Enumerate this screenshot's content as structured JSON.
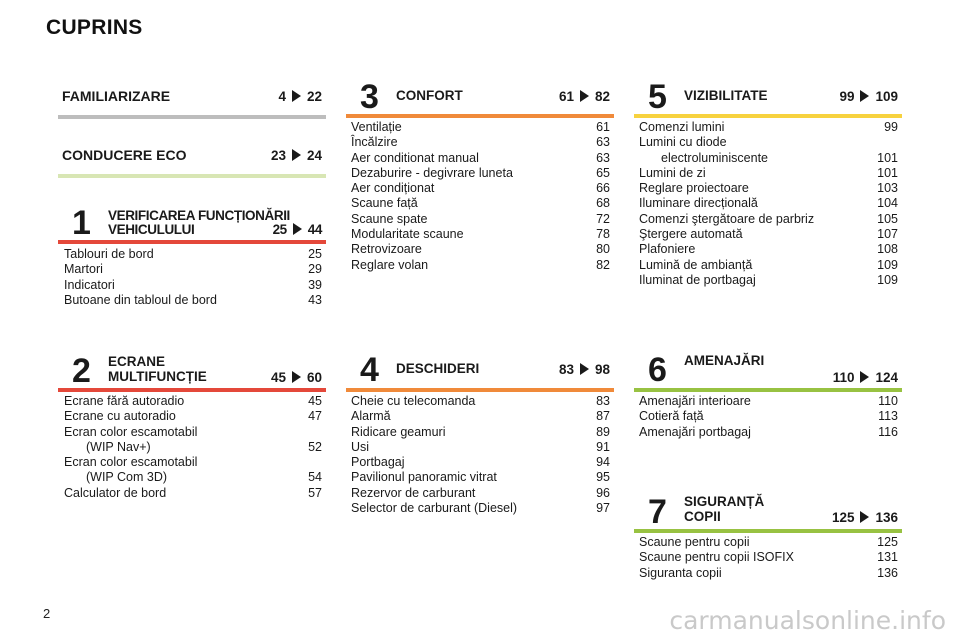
{
  "page": {
    "title": "CUPRINS",
    "number": "2",
    "watermark": "carmanualsonline.info"
  },
  "colors": {
    "gray": "#bdbdbd",
    "lightgreen": "#d8e6b4",
    "red": "#e4483a",
    "orange": "#f08a3a",
    "yellow": "#f7d23e",
    "green": "#98c242"
  },
  "sections": {
    "familiarizare": {
      "title": "FAMILIARIZARE",
      "from": "4",
      "to": "22"
    },
    "conducere_eco": {
      "title": "CONDUCERE ECO",
      "from": "23",
      "to": "24"
    },
    "s1": {
      "num": "1",
      "title_line1": "VERIFICAREA FUNCȚIONĂRII",
      "title_line2": "VEHICULULUI",
      "from": "25",
      "to": "44",
      "items": [
        {
          "label": "Tablouri de bord",
          "page": "25"
        },
        {
          "label": "Martori",
          "page": "29"
        },
        {
          "label": "Indicatori",
          "page": "39"
        },
        {
          "label": "Butoane din tabloul de bord",
          "page": "43"
        }
      ]
    },
    "s2": {
      "num": "2",
      "title_line1": "ECRANE",
      "title_line2": "MULTIFUNCȚIE",
      "from": "45",
      "to": "60",
      "items": [
        {
          "label": "Ecrane fără autoradio",
          "page": "45"
        },
        {
          "label": "Ecrane cu autoradio",
          "page": "47"
        },
        {
          "label": "Ecran color escamotabil",
          "page": ""
        },
        {
          "label": "(WIP Nav+)",
          "page": "52"
        },
        {
          "label": "Ecran color escamotabil",
          "page": ""
        },
        {
          "label": "(WIP Com 3D)",
          "page": "54"
        },
        {
          "label": "Calculator de bord",
          "page": "57"
        }
      ]
    },
    "s3": {
      "num": "3",
      "title": "CONFORT",
      "from": "61",
      "to": "82",
      "items": [
        {
          "label": "Ventilație",
          "page": "61"
        },
        {
          "label": "Încălzire",
          "page": "63"
        },
        {
          "label": "Aer conditionat manual",
          "page": "63"
        },
        {
          "label": "Dezaburire - degivrare luneta",
          "page": "65"
        },
        {
          "label": "Aer condiționat",
          "page": "66"
        },
        {
          "label": "Scaune față",
          "page": "68"
        },
        {
          "label": "Scaune spate",
          "page": "72"
        },
        {
          "label": "Modularitate scaune",
          "page": "78"
        },
        {
          "label": "Retrovizoare",
          "page": "80"
        },
        {
          "label": "Reglare volan",
          "page": "82"
        }
      ]
    },
    "s4": {
      "num": "4",
      "title": "DESCHIDERI",
      "from": "83",
      "to": "98",
      "items": [
        {
          "label": "Cheie cu telecomanda",
          "page": "83"
        },
        {
          "label": "Alarmă",
          "page": "87"
        },
        {
          "label": "Ridicare geamuri",
          "page": "89"
        },
        {
          "label": "Usi",
          "page": "91"
        },
        {
          "label": "Portbagaj",
          "page": "94"
        },
        {
          "label": "Pavilionul panoramic vitrat",
          "page": "95"
        },
        {
          "label": "Rezervor de carburant",
          "page": "96"
        },
        {
          "label": "Selector de carburant (Diesel)",
          "page": "97"
        }
      ]
    },
    "s5": {
      "num": "5",
      "title": "VIZIBILITATE",
      "from": "99",
      "to": "109",
      "items": [
        {
          "label": "Comenzi lumini",
          "page": "99"
        },
        {
          "label": "Lumini cu diode",
          "page": ""
        },
        {
          "label": "electroluminiscente",
          "page": "101"
        },
        {
          "label": "Lumini de zi",
          "page": "101"
        },
        {
          "label": "Reglare proiectoare",
          "page": "103"
        },
        {
          "label": "Iluminare direcțională",
          "page": "104"
        },
        {
          "label": "Comenzi ştergătoare de parbriz",
          "page": "105"
        },
        {
          "label": "Ştergere automată",
          "page": "107"
        },
        {
          "label": "Plafoniere",
          "page": "108"
        },
        {
          "label": "Lumină de ambianță",
          "page": "109"
        },
        {
          "label": "Iluminat de portbagaj",
          "page": "109"
        }
      ]
    },
    "s6": {
      "num": "6",
      "title": "AMENAJĂRI",
      "from": "110",
      "to": "124",
      "items": [
        {
          "label": "Amenajări interioare",
          "page": "110"
        },
        {
          "label": "Cotieră față",
          "page": "113"
        },
        {
          "label": "Amenajări portbagaj",
          "page": "116"
        }
      ]
    },
    "s7": {
      "num": "7",
      "title_line1": "SIGURANȚĂ",
      "title_line2": "COPII",
      "from": "125",
      "to": "136",
      "items": [
        {
          "label": "Scaune pentru copii",
          "page": "125"
        },
        {
          "label": "Scaune pentru copii ISOFIX",
          "page": "131"
        },
        {
          "label": "Siguranta copii",
          "page": "136"
        }
      ]
    }
  }
}
